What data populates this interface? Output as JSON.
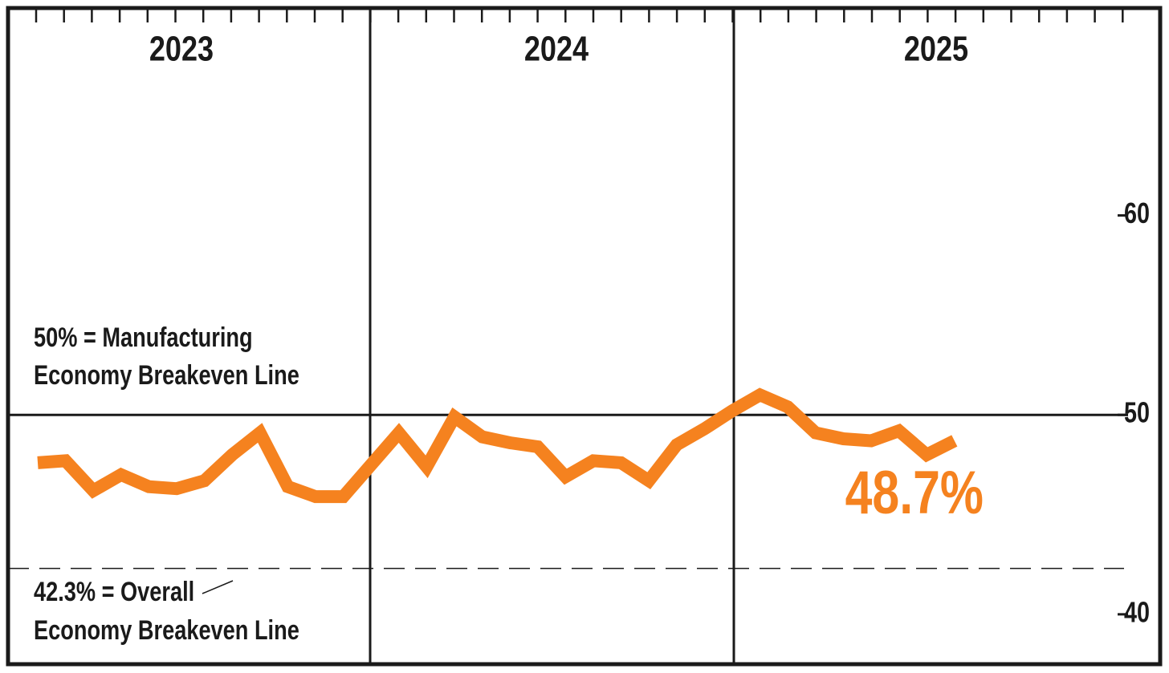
{
  "chart_data": {
    "type": "line",
    "categories": [
      null,
      null,
      null,
      null,
      null,
      null,
      null,
      null,
      null,
      null,
      null,
      null,
      null,
      null,
      null,
      null,
      null,
      null,
      null,
      null,
      null,
      null,
      null,
      null,
      null,
      null,
      null,
      null,
      null,
      null,
      null,
      null,
      null,
      null
    ],
    "series": [
      {
        "color": "#f5821f",
        "values": [
          47.6,
          47.7,
          46.2,
          47.0,
          46.4,
          46.3,
          46.7,
          48.0,
          49.1,
          46.4,
          45.9,
          45.9,
          47.5,
          49.1,
          47.4,
          49.9,
          48.9,
          48.6,
          48.4,
          46.9,
          47.7,
          47.6,
          46.7,
          48.5,
          49.3,
          50.2,
          51.0,
          50.4,
          49.1,
          48.8,
          48.7,
          49.2,
          48.0,
          48.7
        ],
        "value_labels": [
          null,
          null,
          null,
          null,
          null,
          null,
          null,
          null,
          null,
          null,
          null,
          null,
          null,
          null,
          null,
          null,
          null,
          null,
          null,
          null,
          null,
          null,
          null,
          null,
          null,
          null,
          null,
          null,
          null,
          null,
          null,
          null,
          null,
          "48.7%"
        ]
      }
    ],
    "years": [
      "2023",
      "2024",
      "2025"
    ],
    "ylim": [
      37.5,
      70.4
    ],
    "yticks": [
      40,
      50,
      60
    ],
    "reference_lines": [
      {
        "value": 50,
        "style": "solid",
        "label": [
          "50% = Manufacturing",
          "Economy Breakeven Line"
        ]
      },
      {
        "value": 42.3,
        "style": "dashed",
        "label": [
          "42.3% = Overall",
          "Economy Breakeven Line"
        ]
      }
    ]
  }
}
